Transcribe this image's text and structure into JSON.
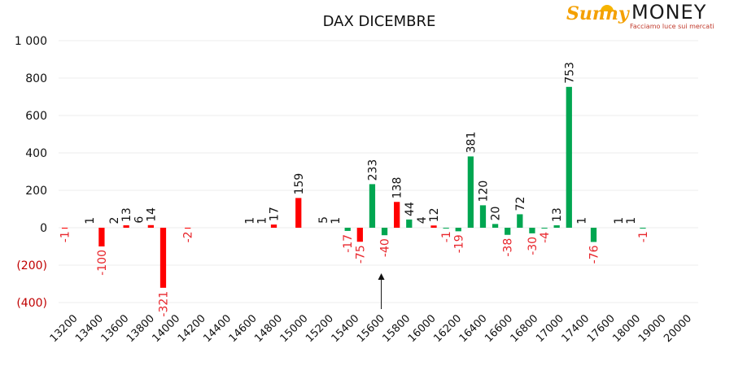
{
  "logo": {
    "brand_a": "Sunny",
    "brand_b": "MONEY",
    "tagline": "Facciamo luce sui mercati"
  },
  "colors": {
    "positive": "#00a651",
    "negative": "#ff0000",
    "neg_label": "#e8262c",
    "grid": "#eeeeee"
  },
  "chart_data": {
    "type": "bar",
    "title": "DAX DICEMBRE",
    "xlabel": "",
    "ylabel": "",
    "ylim": [
      -400,
      1000
    ],
    "y_ticks": [
      {
        "v": 1000,
        "label": "1 000"
      },
      {
        "v": 800,
        "label": "800"
      },
      {
        "v": 600,
        "label": "600"
      },
      {
        "v": 400,
        "label": "400"
      },
      {
        "v": 200,
        "label": "200"
      },
      {
        "v": 0,
        "label": "0"
      },
      {
        "v": -200,
        "label": "(200)"
      },
      {
        "v": -400,
        "label": "(400)"
      }
    ],
    "grid": true,
    "legend": "none",
    "x_tick_labels": [
      "13200",
      "13400",
      "13600",
      "13800",
      "14000",
      "14200",
      "14400",
      "14600",
      "14800",
      "15000",
      "15200",
      "15400",
      "15600",
      "15800",
      "16000",
      "16200",
      "16400",
      "16600",
      "16800",
      "17000",
      "17400",
      "17600",
      "18000",
      "19000",
      "20000"
    ],
    "categories": [
      "13200",
      "13300",
      "13400",
      "13500",
      "13600",
      "13700",
      "13800",
      "13900",
      "14000",
      "14100",
      "14200",
      "14300",
      "14400",
      "14500",
      "14600",
      "14700",
      "14800",
      "14900",
      "15000",
      "15100",
      "15200",
      "15300",
      "15400",
      "15500",
      "15600",
      "15700",
      "15800",
      "15850",
      "15900",
      "15950",
      "16000",
      "16050",
      "16100",
      "16150",
      "16200",
      "16300",
      "16400",
      "16500",
      "16600",
      "16700",
      "16800",
      "16900",
      "17000",
      "17200",
      "17400",
      "17500",
      "17600",
      "17800",
      "18000",
      "18500",
      "19000",
      "20000"
    ],
    "marker": {
      "category": "15800",
      "label": ""
    },
    "bars": [
      {
        "c": 0,
        "v": -1,
        "color": "red"
      },
      {
        "c": 2,
        "v": 1,
        "color": "none"
      },
      {
        "c": 3,
        "v": -100,
        "color": "red"
      },
      {
        "c": 4,
        "v": 2,
        "color": "none"
      },
      {
        "c": 5,
        "v": 13,
        "color": "red"
      },
      {
        "c": 6,
        "v": 6,
        "color": "none"
      },
      {
        "c": 7,
        "v": 14,
        "color": "red"
      },
      {
        "c": 8,
        "v": -321,
        "color": "red"
      },
      {
        "c": 10,
        "v": -2,
        "color": "red"
      },
      {
        "c": 15,
        "v": 1,
        "color": "none"
      },
      {
        "c": 16,
        "v": 1,
        "color": "none"
      },
      {
        "c": 17,
        "v": 17,
        "color": "red"
      },
      {
        "c": 19,
        "v": 159,
        "color": "red"
      },
      {
        "c": 21,
        "v": 5,
        "color": "none"
      },
      {
        "c": 22,
        "v": 1,
        "color": "none"
      },
      {
        "c": 23,
        "v": -17,
        "color": "green"
      },
      {
        "c": 24,
        "v": -75,
        "color": "red"
      },
      {
        "c": 25,
        "v": 233,
        "color": "green"
      },
      {
        "c": 26,
        "v": -40,
        "color": "green"
      },
      {
        "c": 27,
        "v": 138,
        "color": "red"
      },
      {
        "c": 28,
        "v": 44,
        "color": "green"
      },
      {
        "c": 29,
        "v": 4,
        "color": "none"
      },
      {
        "c": 30,
        "v": 12,
        "color": "red"
      },
      {
        "c": 31,
        "v": -1,
        "color": "green"
      },
      {
        "c": 32,
        "v": -19,
        "color": "green"
      },
      {
        "c": 33,
        "v": 381,
        "color": "green"
      },
      {
        "c": 34,
        "v": 120,
        "color": "green"
      },
      {
        "c": 35,
        "v": 20,
        "color": "green"
      },
      {
        "c": 36,
        "v": -38,
        "color": "green"
      },
      {
        "c": 37,
        "v": 72,
        "color": "green"
      },
      {
        "c": 38,
        "v": -30,
        "color": "green"
      },
      {
        "c": 39,
        "v": -4,
        "color": "green"
      },
      {
        "c": 40,
        "v": 13,
        "color": "green"
      },
      {
        "c": 41,
        "v": 753,
        "color": "green"
      },
      {
        "c": 42,
        "v": 1,
        "color": "none"
      },
      {
        "c": 43,
        "v": -76,
        "color": "green"
      },
      {
        "c": 45,
        "v": 1,
        "color": "none"
      },
      {
        "c": 46,
        "v": 1,
        "color": "none"
      },
      {
        "c": 47,
        "v": -1,
        "color": "green"
      }
    ]
  }
}
